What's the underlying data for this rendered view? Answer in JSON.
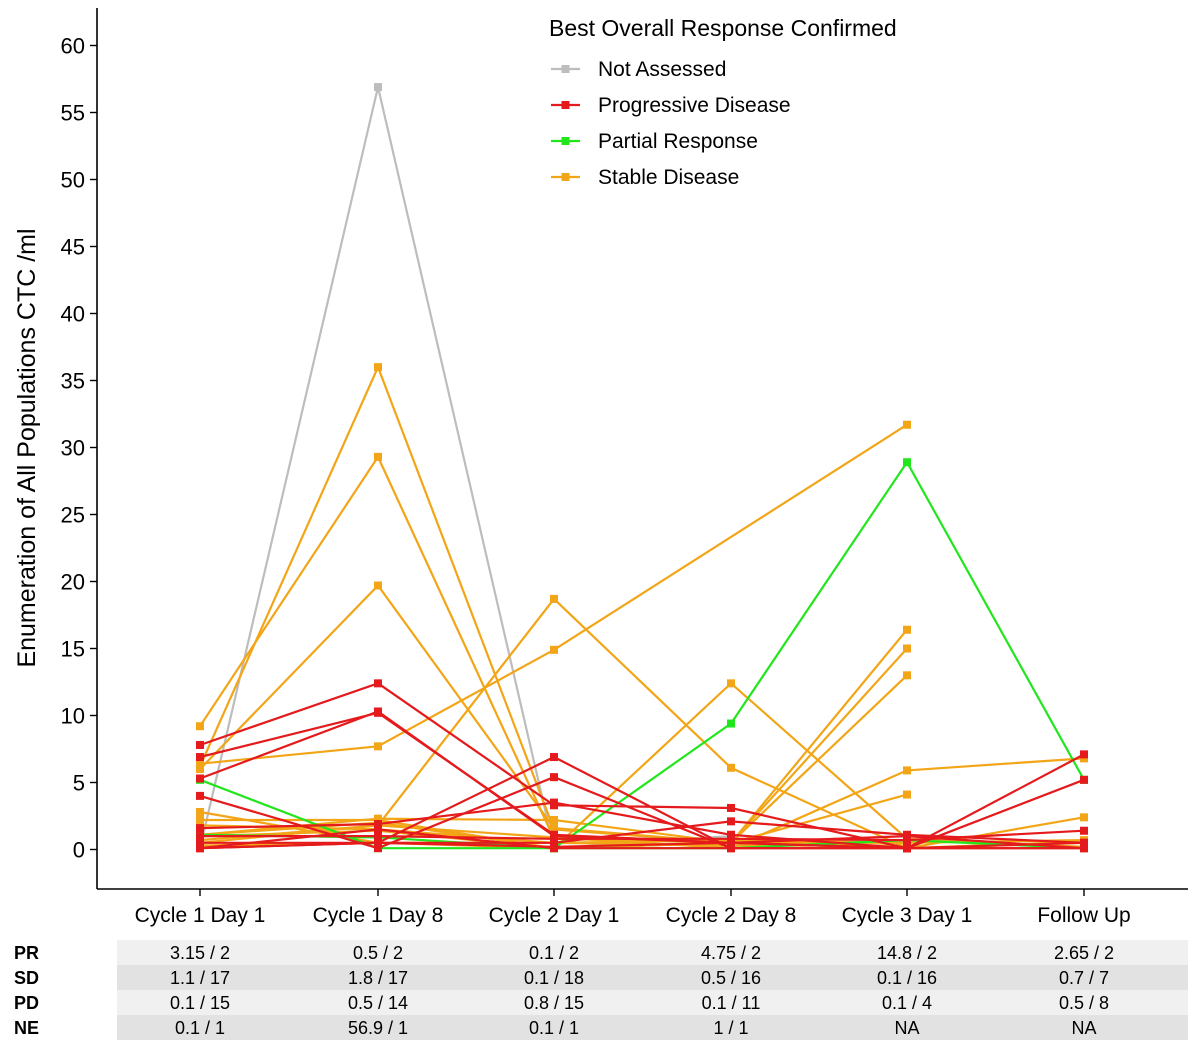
{
  "chart_data": {
    "type": "line",
    "title": "",
    "xlabel": "",
    "ylabel": "Enumeration of All Populations CTC /ml",
    "ylim": [
      -2.8,
      63
    ],
    "yticks": [
      0,
      5,
      10,
      15,
      20,
      25,
      30,
      35,
      40,
      45,
      50,
      55,
      60
    ],
    "categories": [
      "Cycle 1 Day 1",
      "Cycle 1 Day 8",
      "Cycle 2 Day 1",
      "Cycle 2 Day 8",
      "Cycle 3 Day 1",
      "Follow Up"
    ],
    "grid": false,
    "legend": {
      "title": "Best Overall Response Confirmed",
      "placement": "top-right",
      "entries": [
        {
          "label": "Not Assessed",
          "color": "#bdbdbd"
        },
        {
          "label": "Progressive Disease",
          "color": "#e41a1c"
        },
        {
          "label": "Partial Response",
          "color": "#22e61c"
        },
        {
          "label": "Stable Disease",
          "color": "#f2a516"
        }
      ]
    },
    "series": [
      {
        "group": "Not Assessed",
        "values": [
          0.1,
          56.9,
          0.1,
          1,
          null,
          null
        ]
      },
      {
        "group": "Partial Response",
        "values": [
          5.2,
          0.1,
          0.1,
          9.4,
          28.9,
          5.2
        ]
      },
      {
        "group": "Partial Response",
        "values": [
          1.1,
          0.9,
          0.1,
          0.1,
          0.7,
          0.1
        ]
      },
      {
        "group": "Stable Disease",
        "values": [
          6.2,
          36.0,
          1.5,
          0.5,
          0.1,
          0.5
        ]
      },
      {
        "group": "Stable Disease",
        "values": [
          9.2,
          29.3,
          0.8,
          0.5,
          0.5,
          0.7
        ]
      },
      {
        "group": "Stable Disease",
        "values": [
          6.0,
          19.7,
          1.6,
          0.5,
          0.1,
          0.6
        ]
      },
      {
        "group": "Stable Disease",
        "values": [
          6.4,
          7.7,
          14.9,
          null,
          31.7,
          null
        ]
      },
      {
        "group": "Stable Disease",
        "values": [
          0.7,
          1.8,
          18.7,
          6.1,
          0.1,
          2.4
        ]
      },
      {
        "group": "Stable Disease",
        "values": [
          2.8,
          0.5,
          0.1,
          12.4,
          0.8,
          0.2
        ]
      },
      {
        "group": "Stable Disease",
        "values": [
          2.2,
          2.2,
          0.1,
          0.5,
          16.4,
          null
        ]
      },
      {
        "group": "Stable Disease",
        "values": [
          1.0,
          1.4,
          0.1,
          0.5,
          15.0,
          null
        ]
      },
      {
        "group": "Stable Disease",
        "values": [
          1.1,
          2.0,
          0.1,
          0.5,
          13.0,
          null
        ]
      },
      {
        "group": "Stable Disease",
        "values": [
          0.5,
          1.8,
          0.9,
          0.1,
          5.9,
          6.8
        ]
      },
      {
        "group": "Stable Disease",
        "values": [
          1.1,
          2.3,
          2.2,
          0.5,
          4.1,
          null
        ]
      },
      {
        "group": "Stable Disease",
        "values": [
          1.8,
          1.5,
          0.5,
          0.7,
          0.5,
          null
        ]
      },
      {
        "group": "Stable Disease",
        "values": [
          0.3,
          0.5,
          0.5,
          0.3,
          0.3,
          null
        ]
      },
      {
        "group": "Progressive Disease",
        "values": [
          7.8,
          12.4,
          3.3,
          3.1,
          0.1,
          0.5
        ]
      },
      {
        "group": "Progressive Disease",
        "values": [
          6.9,
          10.2,
          1.1,
          0.5,
          0.1,
          0.1
        ]
      },
      {
        "group": "Progressive Disease",
        "values": [
          5.3,
          10.3,
          1.0,
          0.5,
          0.1,
          null
        ]
      },
      {
        "group": "Progressive Disease",
        "values": [
          4.0,
          0.1,
          5.4,
          0.1,
          0.1,
          7.1
        ]
      },
      {
        "group": "Progressive Disease",
        "values": [
          0.1,
          0.5,
          6.9,
          0.1,
          0.1,
          0.1
        ]
      },
      {
        "group": "Progressive Disease",
        "values": [
          1.6,
          1.9,
          3.5,
          1.1,
          0.1,
          5.2
        ]
      },
      {
        "group": "Progressive Disease",
        "values": [
          1.0,
          1.0,
          0.8,
          0.8,
          0.7,
          1.4
        ]
      },
      {
        "group": "Progressive Disease",
        "values": [
          0.5,
          0.5,
          0.5,
          2.1,
          1.1,
          0.5
        ]
      },
      {
        "group": "Progressive Disease",
        "values": [
          0.1,
          0.5,
          0.2,
          0.5,
          1.0,
          0.1
        ]
      },
      {
        "group": "Progressive Disease",
        "values": [
          0.1,
          1.5,
          0.1,
          0.1,
          null,
          null
        ]
      }
    ],
    "table": {
      "rows": [
        {
          "label": "PR",
          "cells": [
            "3.15 / 2",
            "0.5 / 2",
            "0.1 / 2",
            "4.75 / 2",
            "14.8 / 2",
            "2.65 / 2"
          ]
        },
        {
          "label": "SD",
          "cells": [
            "1.1 / 17",
            "1.8 / 17",
            "0.1 / 18",
            "0.5 / 16",
            "0.1 / 16",
            "0.7 / 7"
          ]
        },
        {
          "label": "PD",
          "cells": [
            "0.1 / 15",
            "0.5 / 14",
            "0.8 / 15",
            "0.1 / 11",
            "0.1 / 4",
            "0.5 / 8"
          ]
        },
        {
          "label": "NE",
          "cells": [
            "0.1 / 1",
            "56.9 / 1",
            "0.1 / 1",
            "1 / 1",
            "NA",
            "NA"
          ]
        }
      ]
    }
  }
}
